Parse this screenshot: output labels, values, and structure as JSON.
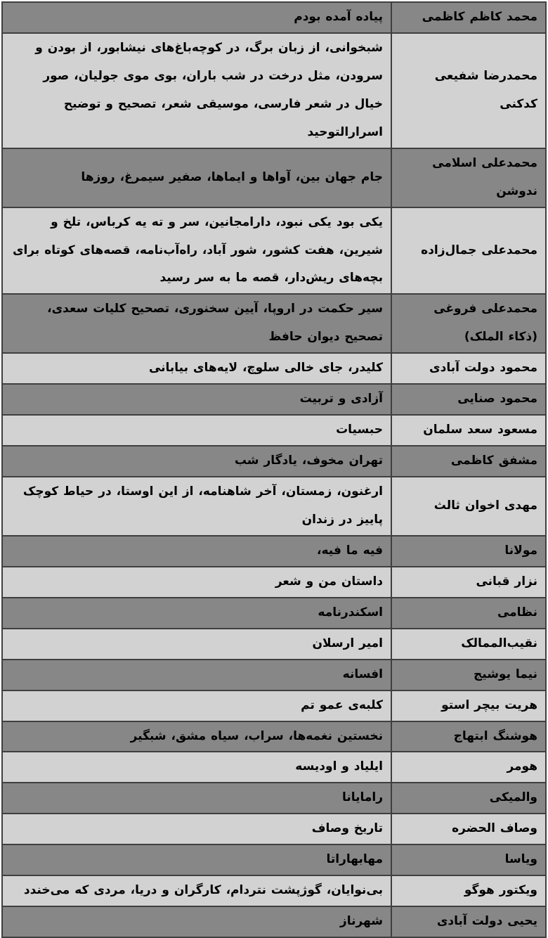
{
  "colors": {
    "dark_row": "#878787",
    "light_row": "#d2d2d2",
    "border": "#3f3f3f",
    "text": "#000000",
    "page_bg": "#ffffff"
  },
  "table": {
    "direction": "rtl",
    "column_semantics": [
      "author",
      "works"
    ],
    "rows": [
      {
        "shade": "dark",
        "author": "محمد کاظم کاظمی",
        "works": "پیاده آمده بودم"
      },
      {
        "shade": "light",
        "author": "محمدرضا شفیعی کدکنی",
        "works": "شبخوانی، از زبان برگ، در کوچه‌باغ‌های نیشابور، از بودن و سرودن، مثل درخت در شب باران، بوی موی جولیان، صور خیال در شعر فارسی، موسیقی شعر، تصحیح و توضیح اسرارالتوحید"
      },
      {
        "shade": "dark",
        "author": "محمدعلی اسلامی ندوشن",
        "works": "جام جهان بین، آواها و ایماها، صفیر سیمرغ، روزها"
      },
      {
        "shade": "light",
        "author": "محمدعلی جمال‌زاده",
        "works": "یکی بود یکی نبود، دارامجانین، سر و ته یه کرباس، تلخ و شیرین، هفت کشور، شور آباد، راه‌آب‌نامه، قصه‌های کوتاه برای بچه‌های ریش‌دار، قصه ما به سر رسید"
      },
      {
        "shade": "dark",
        "author": "محمدعلی فروغی (ذکاء الملک)",
        "works": "سیر حکمت در اروپا، آیین سخنوری، تصحیح کلیات سعدی، تصحیح دیوان حافظ"
      },
      {
        "shade": "light",
        "author": "محمود دولت آبادی",
        "works": "کلیدر، جای خالی سلوچ، لایه‌های بیابانی"
      },
      {
        "shade": "dark",
        "author": "محمود صنایی",
        "works": "آزادی و تربیت"
      },
      {
        "shade": "light",
        "author": "مسعود سعد سلمان",
        "works": "حبسیات"
      },
      {
        "shade": "dark",
        "author": "مشفق کاظمی",
        "works": "تهران مخوف، یادگار شب"
      },
      {
        "shade": "light",
        "author": "مهدی اخوان ثالث",
        "works": "ارغنون، زمستان، آخر شاهنامه، از این اوستا، در حیاط کوچک پاییز در زندان"
      },
      {
        "shade": "dark",
        "author": "مولانا",
        "works": "فیه ما فیه،"
      },
      {
        "shade": "light",
        "author": "نزار قبانی",
        "works": "داستان من و شعر"
      },
      {
        "shade": "dark",
        "author": "نظامی",
        "works": "اسکندرنامه"
      },
      {
        "shade": "light",
        "author": "نقیب‌الممالک",
        "works": "امیر ارسلان"
      },
      {
        "shade": "dark",
        "author": "نیما یوشیج",
        "works": "افسانه"
      },
      {
        "shade": "light",
        "author": "هریت بیچر استو",
        "works": "کلبه‌ی عمو تم"
      },
      {
        "shade": "dark",
        "author": "هوشنگ ابتهاج",
        "works": "نخستین نغمه‌ها، سراب، سیاه مشق، شبگیر"
      },
      {
        "shade": "light",
        "author": "هومر",
        "works": "ایلیاد و اودیسه"
      },
      {
        "shade": "dark",
        "author": "والمیکی",
        "works": "رامایانا"
      },
      {
        "shade": "light",
        "author": "وصاف الحضره",
        "works": "تاریخ وصاف"
      },
      {
        "shade": "dark",
        "author": "ویاسا",
        "works": "مهابهاراتا"
      },
      {
        "shade": "light",
        "author": "ویکتور هوگو",
        "works": "بی‌نوایان، گوژپشت نتردام، کارگران و دریا، مردی که می‌خندد"
      },
      {
        "shade": "dark",
        "author": "یحیی دولت آبادی",
        "works": "شهرناز"
      }
    ]
  }
}
